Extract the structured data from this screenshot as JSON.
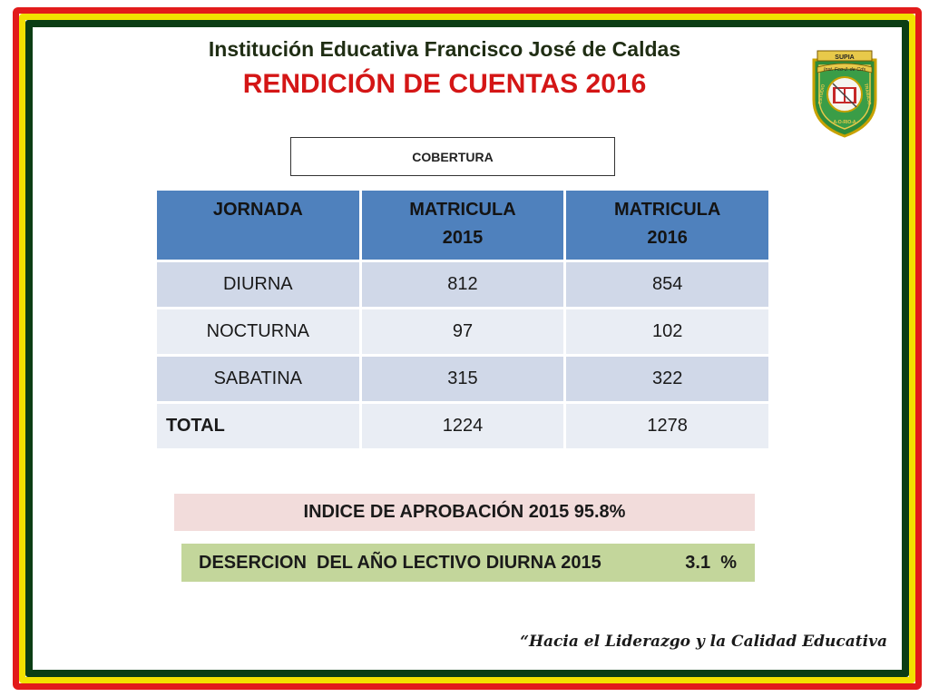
{
  "header": {
    "institution": "Institución Educativa Francisco José de Caldas",
    "title": "RENDICIÓN DE CUENTAS 2016"
  },
  "logo": {
    "top_text": "SUPIA",
    "banner_text": "Inst. Fco-J. de Cds",
    "left_text": "ESTUDIO",
    "right_text": "TRABAJO",
    "bottom_text": "A-O-RIO-A",
    "icon": "school-crest-icon"
  },
  "section_label": "COBERTURA",
  "table": {
    "headers": [
      {
        "line1": "JORNADA",
        "line2": ""
      },
      {
        "line1": "MATRICULA",
        "line2": "2015"
      },
      {
        "line1": "MATRICULA",
        "line2": "2016"
      }
    ],
    "rows": [
      [
        "DIURNA",
        "812",
        "854"
      ],
      [
        "NOCTURNA",
        "97",
        "102"
      ],
      [
        "SABATINA",
        "315",
        "322"
      ],
      [
        "TOTAL",
        "1224",
        "1278"
      ]
    ]
  },
  "aprobacion": "INDICE DE APROBACIÓN 2015 95.8%",
  "desercion": {
    "label": "DESERCION  DEL AÑO LECTIVO DIURNA 2015",
    "value": "3.1  %"
  },
  "slogan": "“Hacia el Liderazgo y la Calidad Educativa",
  "colors": {
    "border_red": "#e21b1b",
    "border_yellow": "#f2e100",
    "border_green": "#0b3d14",
    "title_red": "#d41616",
    "header_blue": "#4f81bd",
    "row_dark": "#d0d8e8",
    "row_light": "#e9edf4",
    "aprobacion_bg": "#f2dcdb",
    "desercion_bg": "#c3d69b"
  }
}
